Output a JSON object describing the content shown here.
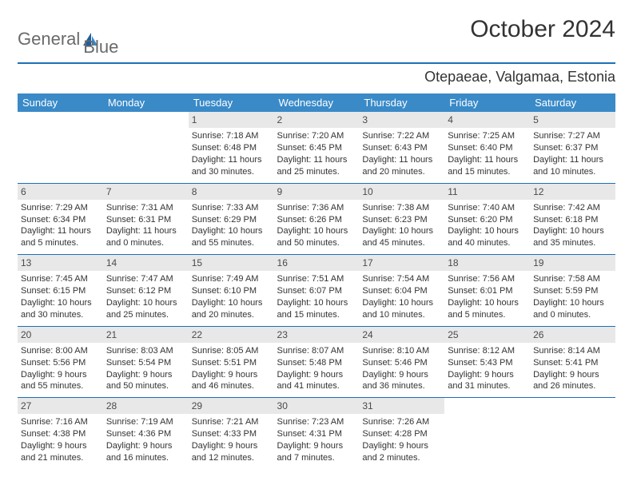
{
  "logo": {
    "text_general": "General",
    "text_blue": "Blue"
  },
  "title": "October 2024",
  "location": "Otepaeae, Valgamaa, Estonia",
  "day_headers": [
    "Sunday",
    "Monday",
    "Tuesday",
    "Wednesday",
    "Thursday",
    "Friday",
    "Saturday"
  ],
  "colors": {
    "header_bg": "#3a8ac8",
    "rule": "#1d70b7",
    "daynum_bg": "#e8e8e8",
    "text": "#333333"
  },
  "weeks": [
    [
      {
        "n": "",
        "sr": "",
        "ss": "",
        "dl": ""
      },
      {
        "n": "",
        "sr": "",
        "ss": "",
        "dl": ""
      },
      {
        "n": "1",
        "sr": "Sunrise: 7:18 AM",
        "ss": "Sunset: 6:48 PM",
        "dl": "Daylight: 11 hours and 30 minutes."
      },
      {
        "n": "2",
        "sr": "Sunrise: 7:20 AM",
        "ss": "Sunset: 6:45 PM",
        "dl": "Daylight: 11 hours and 25 minutes."
      },
      {
        "n": "3",
        "sr": "Sunrise: 7:22 AM",
        "ss": "Sunset: 6:43 PM",
        "dl": "Daylight: 11 hours and 20 minutes."
      },
      {
        "n": "4",
        "sr": "Sunrise: 7:25 AM",
        "ss": "Sunset: 6:40 PM",
        "dl": "Daylight: 11 hours and 15 minutes."
      },
      {
        "n": "5",
        "sr": "Sunrise: 7:27 AM",
        "ss": "Sunset: 6:37 PM",
        "dl": "Daylight: 11 hours and 10 minutes."
      }
    ],
    [
      {
        "n": "6",
        "sr": "Sunrise: 7:29 AM",
        "ss": "Sunset: 6:34 PM",
        "dl": "Daylight: 11 hours and 5 minutes."
      },
      {
        "n": "7",
        "sr": "Sunrise: 7:31 AM",
        "ss": "Sunset: 6:31 PM",
        "dl": "Daylight: 11 hours and 0 minutes."
      },
      {
        "n": "8",
        "sr": "Sunrise: 7:33 AM",
        "ss": "Sunset: 6:29 PM",
        "dl": "Daylight: 10 hours and 55 minutes."
      },
      {
        "n": "9",
        "sr": "Sunrise: 7:36 AM",
        "ss": "Sunset: 6:26 PM",
        "dl": "Daylight: 10 hours and 50 minutes."
      },
      {
        "n": "10",
        "sr": "Sunrise: 7:38 AM",
        "ss": "Sunset: 6:23 PM",
        "dl": "Daylight: 10 hours and 45 minutes."
      },
      {
        "n": "11",
        "sr": "Sunrise: 7:40 AM",
        "ss": "Sunset: 6:20 PM",
        "dl": "Daylight: 10 hours and 40 minutes."
      },
      {
        "n": "12",
        "sr": "Sunrise: 7:42 AM",
        "ss": "Sunset: 6:18 PM",
        "dl": "Daylight: 10 hours and 35 minutes."
      }
    ],
    [
      {
        "n": "13",
        "sr": "Sunrise: 7:45 AM",
        "ss": "Sunset: 6:15 PM",
        "dl": "Daylight: 10 hours and 30 minutes."
      },
      {
        "n": "14",
        "sr": "Sunrise: 7:47 AM",
        "ss": "Sunset: 6:12 PM",
        "dl": "Daylight: 10 hours and 25 minutes."
      },
      {
        "n": "15",
        "sr": "Sunrise: 7:49 AM",
        "ss": "Sunset: 6:10 PM",
        "dl": "Daylight: 10 hours and 20 minutes."
      },
      {
        "n": "16",
        "sr": "Sunrise: 7:51 AM",
        "ss": "Sunset: 6:07 PM",
        "dl": "Daylight: 10 hours and 15 minutes."
      },
      {
        "n": "17",
        "sr": "Sunrise: 7:54 AM",
        "ss": "Sunset: 6:04 PM",
        "dl": "Daylight: 10 hours and 10 minutes."
      },
      {
        "n": "18",
        "sr": "Sunrise: 7:56 AM",
        "ss": "Sunset: 6:01 PM",
        "dl": "Daylight: 10 hours and 5 minutes."
      },
      {
        "n": "19",
        "sr": "Sunrise: 7:58 AM",
        "ss": "Sunset: 5:59 PM",
        "dl": "Daylight: 10 hours and 0 minutes."
      }
    ],
    [
      {
        "n": "20",
        "sr": "Sunrise: 8:00 AM",
        "ss": "Sunset: 5:56 PM",
        "dl": "Daylight: 9 hours and 55 minutes."
      },
      {
        "n": "21",
        "sr": "Sunrise: 8:03 AM",
        "ss": "Sunset: 5:54 PM",
        "dl": "Daylight: 9 hours and 50 minutes."
      },
      {
        "n": "22",
        "sr": "Sunrise: 8:05 AM",
        "ss": "Sunset: 5:51 PM",
        "dl": "Daylight: 9 hours and 46 minutes."
      },
      {
        "n": "23",
        "sr": "Sunrise: 8:07 AM",
        "ss": "Sunset: 5:48 PM",
        "dl": "Daylight: 9 hours and 41 minutes."
      },
      {
        "n": "24",
        "sr": "Sunrise: 8:10 AM",
        "ss": "Sunset: 5:46 PM",
        "dl": "Daylight: 9 hours and 36 minutes."
      },
      {
        "n": "25",
        "sr": "Sunrise: 8:12 AM",
        "ss": "Sunset: 5:43 PM",
        "dl": "Daylight: 9 hours and 31 minutes."
      },
      {
        "n": "26",
        "sr": "Sunrise: 8:14 AM",
        "ss": "Sunset: 5:41 PM",
        "dl": "Daylight: 9 hours and 26 minutes."
      }
    ],
    [
      {
        "n": "27",
        "sr": "Sunrise: 7:16 AM",
        "ss": "Sunset: 4:38 PM",
        "dl": "Daylight: 9 hours and 21 minutes."
      },
      {
        "n": "28",
        "sr": "Sunrise: 7:19 AM",
        "ss": "Sunset: 4:36 PM",
        "dl": "Daylight: 9 hours and 16 minutes."
      },
      {
        "n": "29",
        "sr": "Sunrise: 7:21 AM",
        "ss": "Sunset: 4:33 PM",
        "dl": "Daylight: 9 hours and 12 minutes."
      },
      {
        "n": "30",
        "sr": "Sunrise: 7:23 AM",
        "ss": "Sunset: 4:31 PM",
        "dl": "Daylight: 9 hours and 7 minutes."
      },
      {
        "n": "31",
        "sr": "Sunrise: 7:26 AM",
        "ss": "Sunset: 4:28 PM",
        "dl": "Daylight: 9 hours and 2 minutes."
      },
      {
        "n": "",
        "sr": "",
        "ss": "",
        "dl": ""
      },
      {
        "n": "",
        "sr": "",
        "ss": "",
        "dl": ""
      }
    ]
  ]
}
